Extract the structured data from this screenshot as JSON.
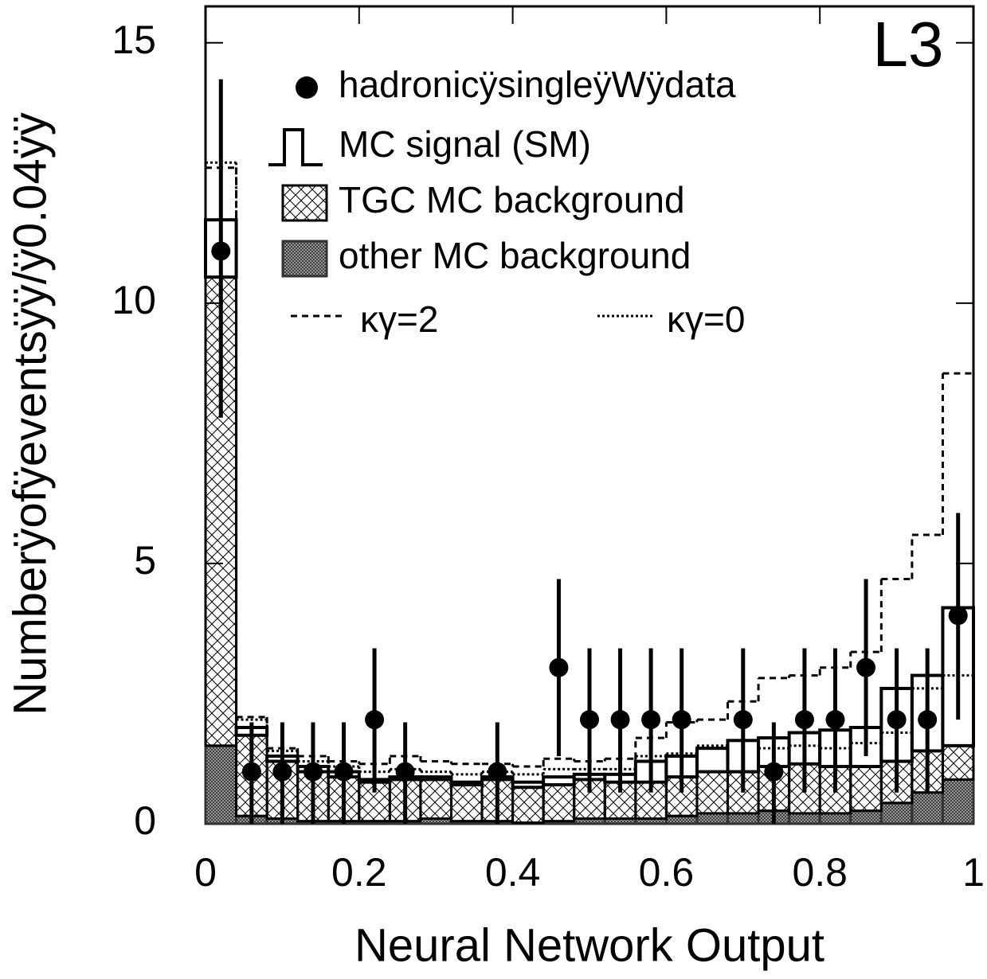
{
  "chart_data": {
    "type": "histogram",
    "title": "L3",
    "x_label": "Neural Network Output",
    "y_label": "Numberÿofÿeventsÿÿ/ÿ0.04ÿÿ",
    "xlim": [
      0,
      1
    ],
    "ylim": [
      0,
      15.7
    ],
    "xticks": [
      0,
      0.2,
      0.4,
      0.6,
      0.8,
      1
    ],
    "yticks": [
      0,
      5,
      10,
      15
    ],
    "bins": [
      0,
      0.04,
      0.08,
      0.12,
      0.16,
      0.2,
      0.24,
      0.28,
      0.32,
      0.36,
      0.4,
      0.44,
      0.48,
      0.52,
      0.56,
      0.6,
      0.64,
      0.68,
      0.72,
      0.76,
      0.8,
      0.84,
      0.88,
      0.92,
      0.96,
      1
    ],
    "series": [
      {
        "name": "hadronicÿsingleÿWÿdata",
        "style": "points",
        "color": "#000000",
        "x": [
          0.02,
          0.06,
          0.1,
          0.14,
          0.18,
          0.22,
          0.26,
          0.3,
          0.34,
          0.38,
          0.42,
          0.46,
          0.5,
          0.54,
          0.58,
          0.62,
          0.66,
          0.7,
          0.74,
          0.78,
          0.82,
          0.86,
          0.9,
          0.94,
          0.98
        ],
        "values": [
          11,
          1,
          1,
          1,
          1,
          2,
          1,
          null,
          null,
          1,
          null,
          3,
          2,
          2,
          2,
          2,
          null,
          2,
          1,
          2,
          2,
          3,
          2,
          2,
          4
        ],
        "errors_low": [
          3.2,
          1,
          1,
          1,
          1,
          1.4,
          1,
          null,
          null,
          1,
          null,
          1.7,
          1.4,
          1.4,
          1.4,
          1.4,
          null,
          1.4,
          1,
          1.4,
          1.4,
          1.7,
          1.4,
          1.4,
          2
        ],
        "errors_high": [
          3.3,
          0.95,
          0.95,
          0.95,
          0.95,
          1.37,
          0.95,
          null,
          null,
          0.95,
          null,
          1.7,
          1.37,
          1.37,
          1.37,
          1.37,
          null,
          1.37,
          0.95,
          1.37,
          1.37,
          1.7,
          1.37,
          1.37,
          1.97
        ]
      },
      {
        "name": "MC signal (SM)",
        "style": "stack-outline",
        "color": "#000000",
        "values": [
          1.1,
          0.15,
          0.1,
          0.1,
          0.1,
          0.05,
          0.05,
          0.05,
          0.05,
          0.05,
          0.1,
          0.15,
          0.1,
          0.15,
          0.4,
          0.4,
          0.45,
          0.6,
          0.55,
          0.6,
          0.7,
          0.75,
          1.4,
          1.45,
          2.65
        ]
      },
      {
        "name": "TGC MC background",
        "style": "stack-hatch",
        "color": "#000000",
        "values": [
          9.0,
          1.55,
          1.1,
          0.95,
          0.85,
          0.75,
          0.8,
          0.75,
          0.7,
          0.8,
          0.68,
          0.7,
          0.75,
          0.7,
          0.7,
          0.75,
          0.8,
          0.8,
          0.85,
          0.95,
          0.9,
          0.85,
          0.8,
          0.8,
          0.65
        ]
      },
      {
        "name": "other MC background",
        "style": "stack-crosshatch",
        "color": "#333333",
        "values": [
          1.5,
          0.15,
          0.1,
          0.05,
          0.05,
          0.05,
          0.05,
          0.1,
          0.05,
          0.05,
          0.02,
          0.05,
          0.1,
          0.1,
          0.1,
          0.15,
          0.2,
          0.2,
          0.25,
          0.2,
          0.2,
          0.25,
          0.4,
          0.6,
          0.85
        ]
      },
      {
        "name": "κγ=2",
        "style": "dashed",
        "color": "#000000",
        "values": [
          12.6,
          2.05,
          1.45,
          1.3,
          1.2,
          1.15,
          1.3,
          1.2,
          1.15,
          1.15,
          1.1,
          1.25,
          1.2,
          1.25,
          1.65,
          1.95,
          2.0,
          2.35,
          2.8,
          2.85,
          3.0,
          3.3,
          4.7,
          5.55,
          8.65
        ]
      },
      {
        "name": "κγ=0",
        "style": "dotted",
        "color": "#000000",
        "values": [
          12.7,
          2.0,
          1.4,
          1.2,
          1.1,
          1.0,
          1.05,
          1.0,
          0.95,
          1.0,
          0.95,
          1.05,
          1.05,
          1.05,
          1.3,
          1.35,
          1.5,
          1.6,
          1.45,
          1.5,
          1.45,
          1.55,
          1.75,
          2.6,
          2.85
        ]
      }
    ]
  }
}
